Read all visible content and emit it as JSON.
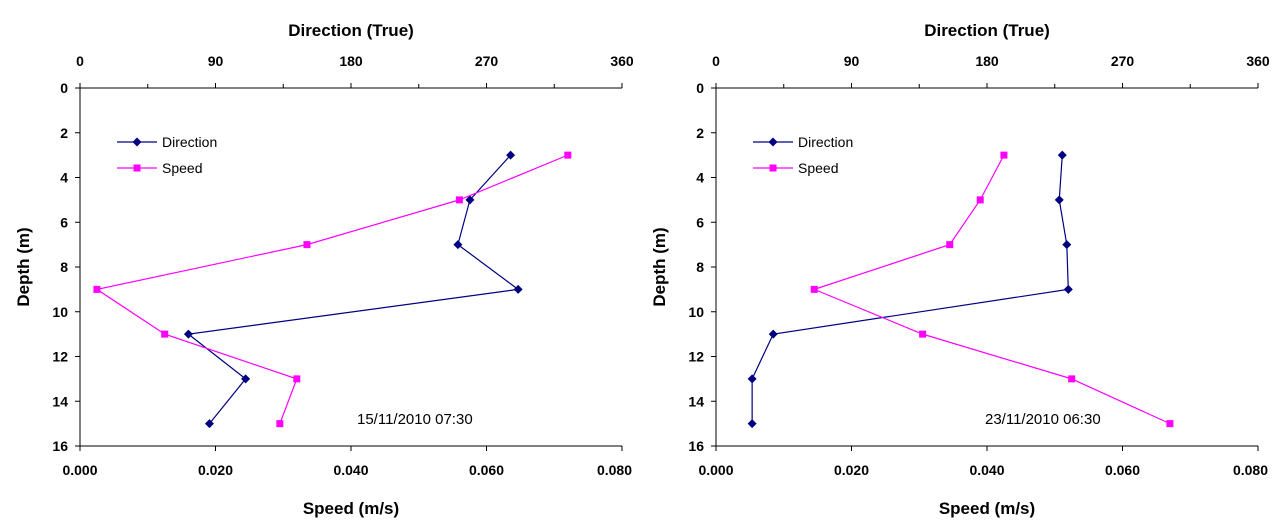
{
  "colors": {
    "direction": "#000080",
    "speed": "#FF00FF",
    "axis": "#000000"
  },
  "chart_data": [
    {
      "type": "line",
      "annotation": "15/11/2010 07:30",
      "top_axis": {
        "label": "Direction (True)",
        "range": [
          0,
          360
        ],
        "ticks": [
          "0",
          "90",
          "180",
          "270",
          "360"
        ]
      },
      "bottom_axis": {
        "label": "Speed (m/s)",
        "range": [
          0,
          0.08
        ],
        "ticks": [
          "0.000",
          "0.020",
          "0.040",
          "0.060",
          "0.080"
        ]
      },
      "y_axis": {
        "label": "Depth (m)",
        "range": [
          0,
          16
        ],
        "inverted": true,
        "ticks": [
          "0",
          "2",
          "4",
          "6",
          "8",
          "10",
          "12",
          "14",
          "16"
        ]
      },
      "legend": {
        "placement": "top-left",
        "entries": [
          "Direction",
          "Speed"
        ]
      },
      "series": [
        {
          "name": "Direction",
          "axis": "top",
          "marker": "diamond",
          "points": [
            [
              286,
              3
            ],
            [
              259,
              5
            ],
            [
              251,
              7
            ],
            [
              291,
              9
            ],
            [
              72,
              11
            ],
            [
              110,
              13
            ],
            [
              86,
              15
            ]
          ]
        },
        {
          "name": "Speed",
          "axis": "bottom",
          "marker": "square",
          "points": [
            [
              0.072,
              3
            ],
            [
              0.056,
              5
            ],
            [
              0.0335,
              7
            ],
            [
              0.0025,
              9
            ],
            [
              0.0125,
              11
            ],
            [
              0.032,
              13
            ],
            [
              0.0295,
              15
            ]
          ]
        }
      ]
    },
    {
      "type": "line",
      "annotation": "23/11/2010 06:30",
      "top_axis": {
        "label": "Direction (True)",
        "range": [
          0,
          360
        ],
        "ticks": [
          "0",
          "90",
          "180",
          "270",
          "360"
        ]
      },
      "bottom_axis": {
        "label": "Speed (m/s)",
        "range": [
          0,
          0.08
        ],
        "ticks": [
          "0.000",
          "0.020",
          "0.040",
          "0.060",
          "0.080"
        ]
      },
      "y_axis": {
        "label": "Depth (m)",
        "range": [
          0,
          16
        ],
        "inverted": true,
        "ticks": [
          "0",
          "2",
          "4",
          "6",
          "8",
          "10",
          "12",
          "14",
          "16"
        ]
      },
      "legend": {
        "placement": "top-left",
        "entries": [
          "Direction",
          "Speed"
        ]
      },
      "series": [
        {
          "name": "Direction",
          "axis": "top",
          "marker": "diamond",
          "points": [
            [
              230,
              3
            ],
            [
              228,
              5
            ],
            [
              233,
              7
            ],
            [
              234,
              9
            ],
            [
              38,
              11
            ],
            [
              24,
              13
            ],
            [
              24,
              15
            ]
          ]
        },
        {
          "name": "Speed",
          "axis": "bottom",
          "marker": "square",
          "points": [
            [
              0.0425,
              3
            ],
            [
              0.039,
              5
            ],
            [
              0.0345,
              7
            ],
            [
              0.0145,
              9
            ],
            [
              0.0305,
              11
            ],
            [
              0.0525,
              13
            ],
            [
              0.067,
              15
            ]
          ]
        }
      ]
    }
  ]
}
